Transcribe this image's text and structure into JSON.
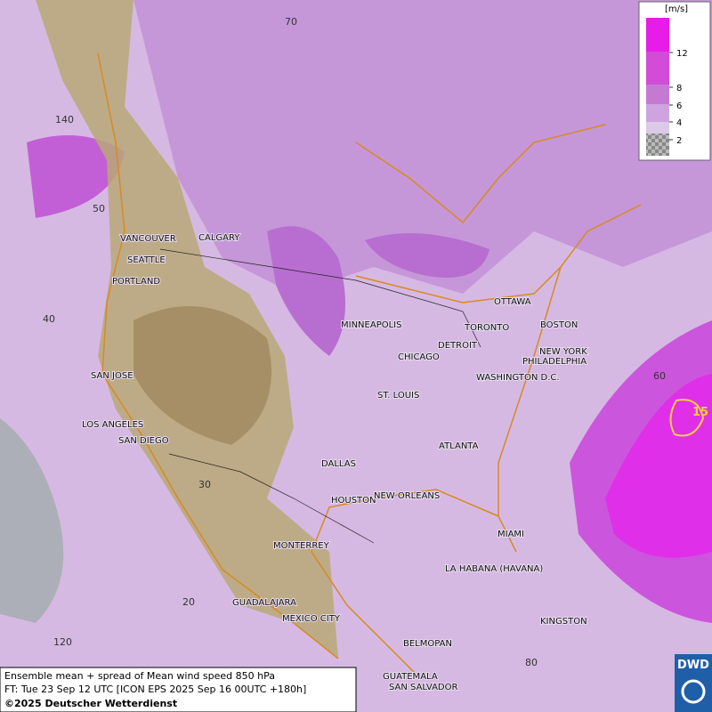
{
  "caption": {
    "line1": "Ensemble mean + spread of Mean wind speed 850 hPa",
    "line2": "FT: Tue 23 Sep 12 UTC [ICON EPS 2025 Sep 16 00UTC +180h]",
    "line3": "©2025 Deutscher Wetterdienst"
  },
  "logo": "DWD",
  "legend": {
    "unit": "[m/s]",
    "ticks": [
      12,
      8,
      6,
      4,
      2
    ],
    "colors": [
      "#e81ce8",
      "#d24cd8",
      "#c47ad3",
      "#cea4de",
      "#dcc8e8"
    ]
  },
  "contour_label": "15",
  "grid_labels": [
    "70",
    "140",
    "50",
    "40",
    "30",
    "20",
    "120",
    "80",
    "60"
  ],
  "cities": [
    "VANCOUVER",
    "CALGARY",
    "SEATTLE",
    "PORTLAND",
    "SAN JOSE",
    "LOS ANGELES",
    "SAN DIEGO",
    "MINNEAPOLIS",
    "CHICAGO",
    "ST. LOUIS",
    "DETROIT",
    "TORONTO",
    "OTTAWA",
    "BOSTON",
    "NEW YORK",
    "PHILADELPHIA",
    "WASHINGTON D.C.",
    "ATLANTA",
    "DALLAS",
    "HOUSTON",
    "NEW ORLEANS",
    "MIAMI",
    "MONTERREY",
    "LA HABANA (HAVANA)",
    "GUADALAJARA",
    "MEXICO CITY",
    "KINGSTON",
    "BELMOPAN",
    "GUATEMALA",
    "SAN SALVADOR"
  ]
}
